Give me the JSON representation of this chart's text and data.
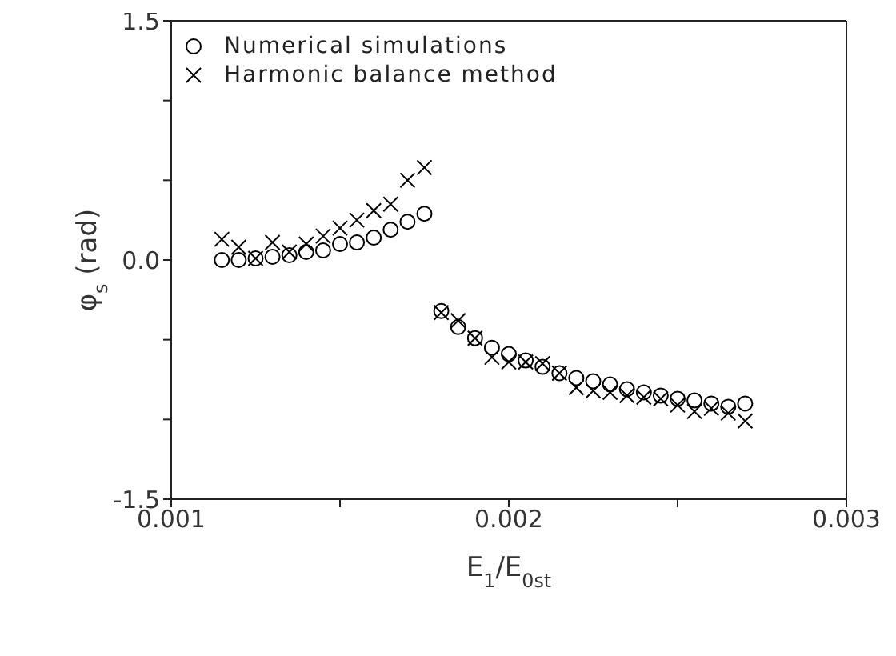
{
  "chart_data": {
    "type": "scatter",
    "xlabel": "E$_{1}$/E$_{0st}$",
    "ylabel": "φ$_{s}$ (rad)",
    "xlim": [
      0.001,
      0.003
    ],
    "xticks": [
      0.001,
      {
        "value": 0.0015,
        "label": null
      },
      0.002,
      {
        "value": 0.0025,
        "label": null
      },
      0.003
    ],
    "ylim": [
      -1.5,
      1.5
    ],
    "yticks": [
      {
        "value": -1.5,
        "label": "-1.5"
      },
      {
        "value": -1.0,
        "label": null
      },
      {
        "value": -0.5,
        "label": null
      },
      {
        "value": 0.0,
        "label": "0.0"
      },
      {
        "value": 0.5,
        "label": null
      },
      {
        "value": 1.0,
        "label": null
      },
      {
        "value": 1.5,
        "label": "1.5"
      }
    ],
    "legend": "top left",
    "series": [
      {
        "name": "Numerical simulations",
        "color": "#000000",
        "marker": "circle",
        "x": [
          0.00115,
          0.0012,
          0.00125,
          0.0013,
          0.00135,
          0.0014,
          0.00145,
          0.0015,
          0.00155,
          0.0016,
          0.00165,
          0.0017,
          0.00175,
          0.0018,
          0.00185,
          0.0019,
          0.00195,
          0.002,
          0.00205,
          0.0021,
          0.00215,
          0.0022,
          0.00225,
          0.0023,
          0.00235,
          0.0024,
          0.00245,
          0.0025,
          0.00255,
          0.0026,
          0.00265,
          0.0027
        ],
        "values": [
          0.0,
          0.0,
          0.01,
          0.02,
          0.03,
          0.05,
          0.06,
          0.1,
          0.11,
          0.14,
          0.19,
          0.24,
          0.29,
          -0.32,
          -0.42,
          -0.49,
          -0.55,
          -0.59,
          -0.63,
          -0.67,
          -0.71,
          -0.74,
          -0.76,
          -0.78,
          -0.81,
          -0.83,
          -0.85,
          -0.87,
          -0.88,
          -0.9,
          -0.92,
          -0.9
        ]
      },
      {
        "name": "Harmonic balance method",
        "color": "#000000",
        "marker": "cross",
        "x": [
          0.00115,
          0.0012,
          0.00125,
          0.0013,
          0.00135,
          0.0014,
          0.00145,
          0.0015,
          0.00155,
          0.0016,
          0.00165,
          0.0017,
          0.00175,
          0.0018,
          0.00185,
          0.0019,
          0.00195,
          0.002,
          0.00205,
          0.0021,
          0.00215,
          0.0022,
          0.00225,
          0.0023,
          0.00235,
          0.0024,
          0.00245,
          0.0025,
          0.00255,
          0.0026,
          0.00265,
          0.0027
        ],
        "values": [
          0.13,
          0.08,
          0.01,
          0.11,
          0.05,
          0.1,
          0.15,
          0.2,
          0.25,
          0.31,
          0.35,
          0.5,
          0.58,
          -0.33,
          -0.38,
          -0.49,
          -0.61,
          -0.64,
          -0.64,
          -0.65,
          -0.71,
          -0.8,
          -0.82,
          -0.83,
          -0.85,
          -0.86,
          -0.87,
          -0.91,
          -0.95,
          -0.93,
          -0.96,
          -1.01
        ]
      }
    ]
  }
}
